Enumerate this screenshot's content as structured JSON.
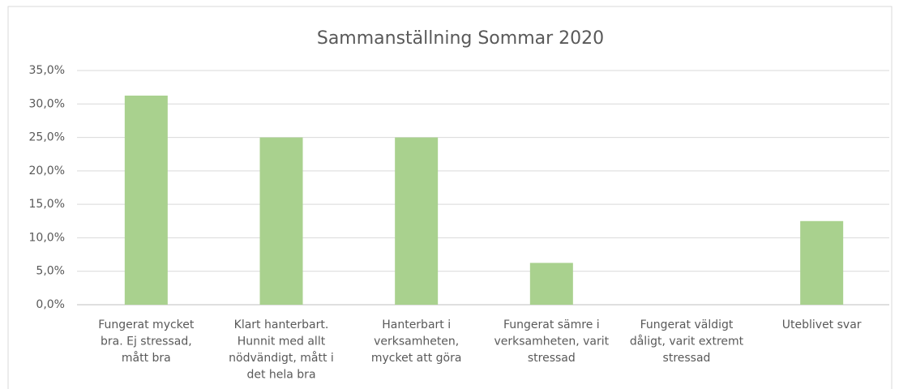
{
  "chart_data": {
    "type": "bar",
    "title": "Sammanställning Sommar 2020",
    "categories": [
      [
        "Fungerat mycket",
        "bra. Ej stressad,",
        "mått bra"
      ],
      [
        "Klart hanterbart.",
        "Hunnit med allt",
        "nödvändigt, mått i",
        "det hela bra"
      ],
      [
        "Hanterbart i",
        "verksamheten,",
        "mycket att göra"
      ],
      [
        "Fungerat sämre i",
        "verksamheten, varit",
        "stressad"
      ],
      [
        "Fungerat väldigt",
        "dåligt, varit extremt",
        "stressad"
      ],
      [
        "Uteblivet svar"
      ]
    ],
    "values": [
      31.25,
      25,
      25,
      6.25,
      0,
      12.5
    ],
    "color": "#a9d18e",
    "ylim": [
      0,
      35
    ],
    "yticks": [
      {
        "value": 0,
        "label": "0,0%"
      },
      {
        "value": 5,
        "label": "5,0%"
      },
      {
        "value": 10,
        "label": "10,0%"
      },
      {
        "value": 15,
        "label": "15,0%"
      },
      {
        "value": 20,
        "label": "20,0%"
      },
      {
        "value": 25,
        "label": "25,0%"
      },
      {
        "value": 30,
        "label": "30,0%"
      },
      {
        "value": 35,
        "label": "35,0%"
      }
    ],
    "grid": true
  }
}
